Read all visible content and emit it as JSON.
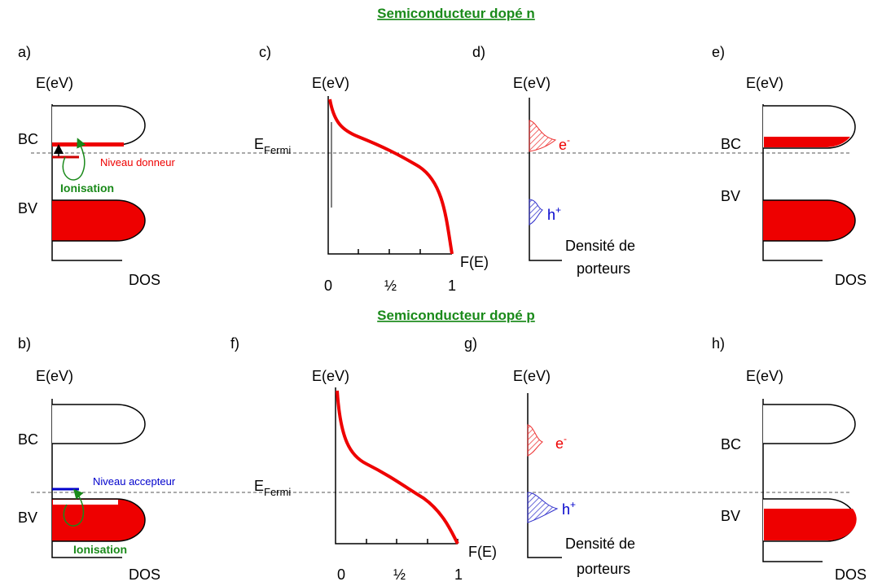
{
  "top": {
    "title": "Semiconducteur dopé n",
    "a": {
      "label": "a)",
      "y_axis": "E(eV)",
      "bc": "BC",
      "bv": "BV",
      "x_axis": "DOS",
      "level": "Niveau donneur",
      "ionisation": "Ionisation"
    },
    "c": {
      "label": "c)",
      "y_axis": "E(eV)",
      "fermi": "E",
      "fermi_sub": "Fermi",
      "x_axis": "F(E)",
      "ticks": [
        "0",
        "½",
        "1"
      ]
    },
    "d": {
      "label": "d)",
      "y_axis": "E(eV)",
      "electron": "e",
      "electron_sup": "-",
      "hole": "h",
      "hole_sup": "+",
      "x_axis": [
        "Densité de",
        "porteurs"
      ]
    },
    "e": {
      "label": "e)",
      "y_axis": "E(eV)",
      "bc": "BC",
      "bv": "BV",
      "x_axis": "DOS"
    }
  },
  "bottom": {
    "title": "Semiconducteur dopé p",
    "b": {
      "label": "b)",
      "y_axis": "E(eV)",
      "bc": "BC",
      "bv": "BV",
      "x_axis": "DOS",
      "level": "Niveau accepteur",
      "ionisation": "Ionisation"
    },
    "f": {
      "label": "f)",
      "y_axis": "E(eV)",
      "fermi": "E",
      "fermi_sub": "Fermi",
      "x_axis": "F(E)",
      "ticks": [
        "0",
        "½",
        "1"
      ]
    },
    "g": {
      "label": "g)",
      "y_axis": "E(eV)",
      "electron": "e",
      "electron_sup": "-",
      "hole": "h",
      "hole_sup": "+",
      "x_axis": [
        "Densité de",
        "porteurs"
      ]
    },
    "h": {
      "label": "h)",
      "y_axis": "E(eV)",
      "bc": "BC",
      "bv": "BV",
      "x_axis": "DOS"
    }
  }
}
